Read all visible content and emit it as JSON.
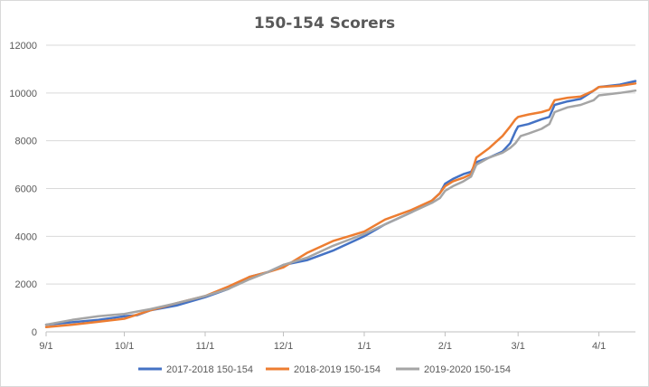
{
  "chart_data": {
    "type": "line",
    "title": "150-154 Scorers",
    "xlabel": "",
    "ylabel": "",
    "ylim": [
      0,
      12000
    ],
    "y_ticks": [
      0,
      2000,
      4000,
      6000,
      8000,
      10000,
      12000
    ],
    "x_ticks": [
      {
        "label": "9/1",
        "day": 0
      },
      {
        "label": "10/1",
        "day": 30
      },
      {
        "label": "11/1",
        "day": 61
      },
      {
        "label": "12/1",
        "day": 91
      },
      {
        "label": "1/1",
        "day": 122
      },
      {
        "label": "2/1",
        "day": 153
      },
      {
        "label": "3/1",
        "day": 181
      },
      {
        "label": "4/1",
        "day": 212
      }
    ],
    "xlim_days": [
      0,
      226
    ],
    "grid": "horizontal",
    "legend_position": "bottom",
    "series": [
      {
        "name": "2017-2018 150-154",
        "color": "#4472C4",
        "days": [
          0,
          10,
          20,
          30,
          35,
          40,
          50,
          61,
          70,
          78,
          85,
          91,
          100,
          110,
          122,
          130,
          140,
          148,
          151,
          153,
          156,
          160,
          163,
          165,
          170,
          175,
          178,
          180,
          181,
          185,
          190,
          193,
          195,
          200,
          205,
          210,
          212,
          220,
          226
        ],
        "values": [
          300,
          400,
          500,
          650,
          700,
          900,
          1100,
          1450,
          1800,
          2300,
          2500,
          2800,
          3000,
          3400,
          4000,
          4500,
          5000,
          5500,
          5800,
          6200,
          6400,
          6600,
          6700,
          7100,
          7300,
          7550,
          7900,
          8400,
          8600,
          8700,
          8900,
          9000,
          9500,
          9650,
          9750,
          10100,
          10250,
          10350,
          10500
        ]
      },
      {
        "name": "2018-2019 150-154",
        "color": "#ED7D31",
        "days": [
          0,
          10,
          20,
          30,
          40,
          50,
          61,
          70,
          78,
          85,
          91,
          100,
          110,
          122,
          130,
          140,
          148,
          151,
          153,
          156,
          160,
          163,
          165,
          170,
          175,
          178,
          180,
          181,
          185,
          190,
          193,
          195,
          200,
          205,
          210,
          212,
          220,
          226
        ],
        "values": [
          200,
          300,
          420,
          550,
          900,
          1200,
          1500,
          1900,
          2300,
          2500,
          2700,
          3300,
          3800,
          4200,
          4700,
          5100,
          5500,
          5800,
          6100,
          6300,
          6450,
          6600,
          7300,
          7700,
          8200,
          8600,
          8900,
          9000,
          9100,
          9200,
          9300,
          9700,
          9800,
          9850,
          10100,
          10250,
          10300,
          10400
        ]
      },
      {
        "name": "2019-2020 150-154",
        "color": "#A5A5A5",
        "days": [
          0,
          10,
          20,
          30,
          35,
          40,
          50,
          61,
          70,
          78,
          85,
          91,
          100,
          110,
          122,
          130,
          140,
          148,
          151,
          153,
          156,
          160,
          163,
          165,
          170,
          175,
          178,
          180,
          182,
          185,
          190,
          193,
          195,
          200,
          205,
          210,
          212,
          220,
          226
        ],
        "values": [
          300,
          500,
          650,
          750,
          850,
          950,
          1200,
          1500,
          1800,
          2200,
          2500,
          2800,
          3100,
          3600,
          4100,
          4500,
          5000,
          5400,
          5600,
          5900,
          6100,
          6300,
          6500,
          7000,
          7300,
          7500,
          7700,
          7900,
          8200,
          8300,
          8500,
          8700,
          9200,
          9400,
          9500,
          9700,
          9900,
          10000,
          10100
        ]
      }
    ]
  }
}
